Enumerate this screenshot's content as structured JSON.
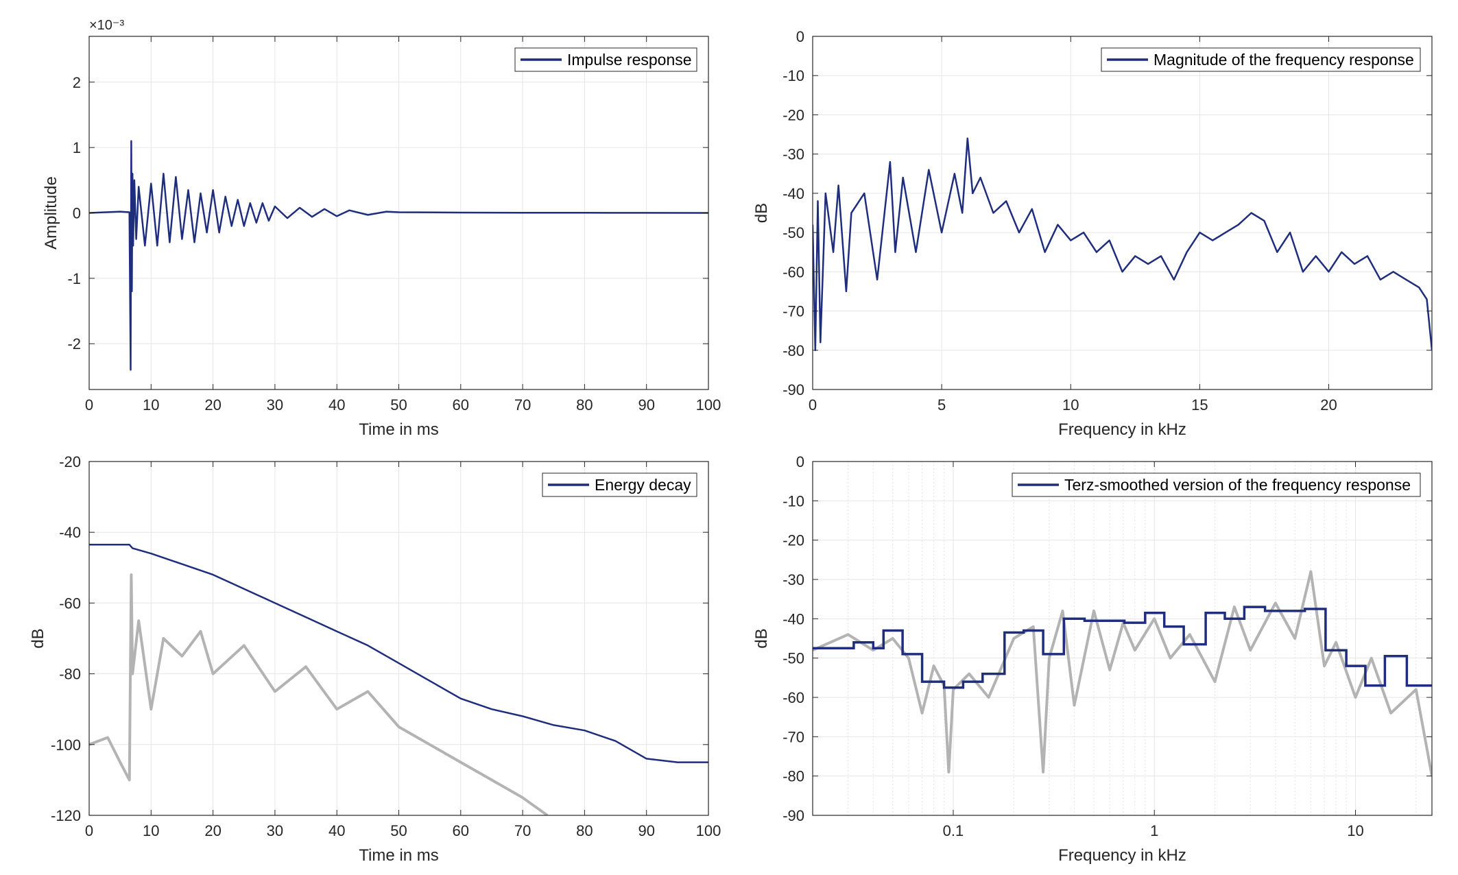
{
  "chart_data": [
    {
      "type": "line",
      "xlabel": "Time in ms",
      "ylabel": "Amplitude",
      "xlim": [
        0,
        100
      ],
      "ylim": [
        -2.7,
        2.7
      ],
      "y_multiplier": "×10⁻³",
      "xticks": [
        "0",
        "10",
        "20",
        "30",
        "40",
        "50",
        "60",
        "70",
        "80",
        "90",
        "100"
      ],
      "yticks": [
        "2",
        "1",
        "0",
        "-1",
        "-2"
      ],
      "ytick_values": [
        2,
        1,
        0,
        -1,
        -2
      ],
      "grid": true,
      "legend_position": "top-right",
      "series": [
        {
          "name": "Impulse response",
          "color": "#1f2d7d",
          "x": [
            0,
            5,
            6.5,
            6.7,
            6.8,
            6.9,
            7.0,
            7.1,
            7.3,
            7.6,
            8,
            9,
            10,
            11,
            12,
            13,
            14,
            15,
            16,
            17,
            18,
            19,
            20,
            21,
            22,
            23,
            24,
            25,
            26,
            27,
            28,
            29,
            30,
            32,
            34,
            36,
            38,
            40,
            42,
            45,
            48,
            50,
            60,
            70,
            80,
            90,
            100
          ],
          "y": [
            0,
            0.02,
            0.01,
            -2.4,
            1.1,
            -1.2,
            0.6,
            -0.5,
            0.5,
            -0.4,
            0.4,
            -0.5,
            0.45,
            -0.5,
            0.6,
            -0.45,
            0.55,
            -0.4,
            0.35,
            -0.45,
            0.3,
            -0.3,
            0.35,
            -0.3,
            0.25,
            -0.2,
            0.2,
            -0.2,
            0.15,
            -0.15,
            0.15,
            -0.12,
            0.1,
            -0.08,
            0.08,
            -0.06,
            0.06,
            -0.05,
            0.04,
            -0.03,
            0.02,
            0.01,
            0.005,
            0.003,
            0.002,
            0.001,
            0
          ]
        }
      ]
    },
    {
      "type": "line",
      "xlabel": "Frequency in kHz",
      "ylabel": "dB",
      "xlim": [
        0,
        24
      ],
      "ylim": [
        -90,
        0
      ],
      "xticks": [
        "0",
        "5",
        "10",
        "15",
        "20"
      ],
      "xtick_values": [
        0,
        5,
        10,
        15,
        20
      ],
      "yticks": [
        "0",
        "-10",
        "-20",
        "-30",
        "-40",
        "-50",
        "-60",
        "-70",
        "-80",
        "-90"
      ],
      "grid": true,
      "legend_position": "top-right",
      "series": [
        {
          "name": "Magnitude of the frequency response",
          "color": "#1f2d7d",
          "x": [
            0,
            0.1,
            0.2,
            0.3,
            0.5,
            0.8,
            1.0,
            1.3,
            1.5,
            2.0,
            2.5,
            3.0,
            3.2,
            3.5,
            4.0,
            4.5,
            5.0,
            5.5,
            5.8,
            6.0,
            6.2,
            6.5,
            7.0,
            7.5,
            8.0,
            8.5,
            9.0,
            9.5,
            10.0,
            10.5,
            11.0,
            11.5,
            12.0,
            12.5,
            13.0,
            13.5,
            14.0,
            14.5,
            15.0,
            15.5,
            16.0,
            16.5,
            17.0,
            17.5,
            18.0,
            18.5,
            19.0,
            19.5,
            20.0,
            20.5,
            21.0,
            21.5,
            22.0,
            22.5,
            23.0,
            23.5,
            23.8,
            24.0
          ],
          "y": [
            -48,
            -80,
            -42,
            -78,
            -40,
            -55,
            -38,
            -65,
            -45,
            -40,
            -62,
            -32,
            -55,
            -36,
            -55,
            -34,
            -50,
            -35,
            -45,
            -26,
            -40,
            -36,
            -45,
            -42,
            -50,
            -44,
            -55,
            -48,
            -52,
            -50,
            -55,
            -52,
            -60,
            -56,
            -58,
            -56,
            -62,
            -55,
            -50,
            -52,
            -50,
            -48,
            -45,
            -47,
            -55,
            -50,
            -60,
            -56,
            -60,
            -55,
            -58,
            -56,
            -62,
            -60,
            -62,
            -64,
            -67,
            -80
          ]
        }
      ]
    },
    {
      "type": "line",
      "xlabel": "Time in ms",
      "ylabel": "dB",
      "xlim": [
        0,
        100
      ],
      "ylim": [
        -120,
        -20
      ],
      "xticks": [
        "0",
        "10",
        "20",
        "30",
        "40",
        "50",
        "60",
        "70",
        "80",
        "90",
        "100"
      ],
      "yticks": [
        "-20",
        "-40",
        "-60",
        "-80",
        "-100",
        "-120"
      ],
      "ytick_values": [
        -20,
        -40,
        -60,
        -80,
        -100,
        -120
      ],
      "grid": true,
      "legend_position": "top-right",
      "series": [
        {
          "name": "Energy decay",
          "color": "#1f2d7d",
          "x": [
            0,
            6.5,
            7,
            10,
            15,
            20,
            25,
            30,
            35,
            40,
            45,
            50,
            55,
            60,
            65,
            70,
            75,
            80,
            85,
            90,
            95,
            100
          ],
          "y": [
            -43.5,
            -43.5,
            -44.5,
            -46,
            -49,
            -52,
            -56,
            -60,
            -64,
            -68,
            -72,
            -77,
            -82,
            -87,
            -90,
            -92,
            -94.5,
            -96,
            -99,
            -104,
            -105,
            -105
          ]
        },
        {
          "color": "#b3b3b3",
          "x": [
            0,
            3,
            5,
            6.5,
            6.8,
            7,
            8,
            10,
            12,
            15,
            18,
            20,
            25,
            30,
            35,
            40,
            45,
            50,
            55,
            60,
            65,
            70,
            74
          ],
          "y": [
            -100,
            -98,
            -105,
            -110,
            -52,
            -80,
            -65,
            -90,
            -70,
            -75,
            -68,
            -80,
            -72,
            -85,
            -78,
            -90,
            -85,
            -95,
            -100,
            -105,
            -110,
            -115,
            -120
          ]
        }
      ]
    },
    {
      "type": "line",
      "xlabel": "Frequency in kHz",
      "ylabel": "dB",
      "xscale": "log",
      "xlim": [
        0.02,
        24
      ],
      "ylim": [
        -90,
        0
      ],
      "xticks": [
        "0.1",
        "1",
        "10"
      ],
      "xtick_values": [
        0.1,
        1,
        10
      ],
      "yticks": [
        "0",
        "-10",
        "-20",
        "-30",
        "-40",
        "-50",
        "-60",
        "-70",
        "-80",
        "-90"
      ],
      "grid": true,
      "legend_position": "top-right",
      "series": [
        {
          "name": "Terz-smoothed version of the frequency response",
          "color": "#1f2d7d",
          "x": [
            0.02,
            0.032,
            0.04,
            0.045,
            0.056,
            0.07,
            0.09,
            0.112,
            0.14,
            0.18,
            0.224,
            0.28,
            0.355,
            0.45,
            0.56,
            0.71,
            0.9,
            1.12,
            1.4,
            1.8,
            2.24,
            2.8,
            3.55,
            4.5,
            5.6,
            7.1,
            9.0,
            11.2,
            14.0,
            18.0,
            24.0
          ],
          "y": [
            -47.5,
            -46,
            -47.5,
            -43,
            -49,
            -56,
            -57.5,
            -56,
            -54,
            -43.5,
            -43,
            -49,
            -40,
            -40.5,
            -40.5,
            -41,
            -38.5,
            -42,
            -46.5,
            -38.5,
            -40,
            -37,
            -38,
            -38,
            -37.5,
            -48,
            -52,
            -57,
            -49.5,
            -57,
            -57
          ]
        },
        {
          "color": "#b3b3b3",
          "x": [
            0.02,
            0.03,
            0.04,
            0.05,
            0.06,
            0.07,
            0.08,
            0.09,
            0.095,
            0.1,
            0.12,
            0.15,
            0.2,
            0.25,
            0.28,
            0.3,
            0.35,
            0.4,
            0.5,
            0.6,
            0.7,
            0.8,
            1.0,
            1.2,
            1.5,
            2.0,
            2.5,
            3.0,
            4.0,
            5.0,
            6.0,
            7.0,
            8.0,
            10.0,
            12.0,
            15.0,
            20.0,
            24.0
          ],
          "y": [
            -48,
            -44,
            -48,
            -45,
            -50,
            -64,
            -52,
            -57,
            -79,
            -58,
            -54,
            -60,
            -45,
            -42,
            -79,
            -50,
            -38,
            -62,
            -38,
            -53,
            -41,
            -48,
            -40,
            -50,
            -44,
            -56,
            -37,
            -48,
            -36,
            -45,
            -28,
            -52,
            -46,
            -60,
            -50,
            -64,
            -58,
            -80
          ]
        }
      ]
    }
  ]
}
